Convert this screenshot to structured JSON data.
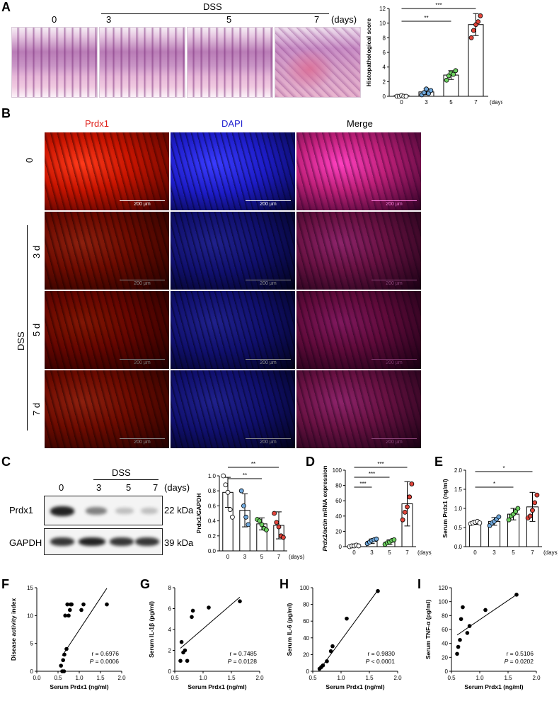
{
  "panels": {
    "A": {
      "letter": "A",
      "top_labels": [
        "0",
        "3",
        "5",
        "7"
      ],
      "dss_label": "DSS",
      "days_label": "(days)",
      "chart": {
        "ylabel": "Histopathological score",
        "categories": [
          "0",
          "3",
          "5",
          "7"
        ],
        "days": "(days)",
        "yticks": [
          "0",
          "2",
          "4",
          "6",
          "8",
          "10",
          "12"
        ],
        "sig": [
          "***",
          "**"
        ]
      }
    },
    "B": {
      "letter": "B",
      "channels": [
        "Prdx1",
        "DAPI",
        "Merge"
      ],
      "rows": [
        "0",
        "3 d",
        "5 d",
        "7 d"
      ],
      "dss_label": "DSS",
      "scalebar": "200 µm"
    },
    "C": {
      "letter": "C",
      "dss_label": "DSS",
      "lanes": [
        "0",
        "3",
        "5",
        "7"
      ],
      "days_label": "(days)",
      "proteins": [
        {
          "name": "Prdx1",
          "kda": "22 kDa"
        },
        {
          "name": "GAPDH",
          "kda": "39 kDa"
        }
      ],
      "chart": {
        "ylabel": "Prdx1/GAPDH",
        "yticks": [
          "0.0",
          "0.2",
          "0.4",
          "0.6",
          "0.8",
          "1.0"
        ],
        "categories": [
          "0",
          "3",
          "5",
          "7"
        ],
        "days": "(days)",
        "sig": [
          "**",
          "**"
        ]
      }
    },
    "D": {
      "letter": "D",
      "ylabel_italic": "Prdx1/actin",
      "ylabel_rest": " mRNA expression",
      "yticks": [
        "0",
        "20",
        "40",
        "60",
        "80",
        "100"
      ],
      "categories": [
        "0",
        "3",
        "5",
        "7"
      ],
      "days": "(days)",
      "sig": [
        "***",
        "***",
        "***"
      ]
    },
    "E": {
      "letter": "E",
      "ylabel": "Serum Prdx1 (ng/ml)",
      "yticks": [
        "0.0",
        "0.5",
        "1.0",
        "1.5",
        "2.0"
      ],
      "categories": [
        "0",
        "3",
        "5",
        "7"
      ],
      "days": "(days)",
      "sig": [
        "*",
        "*"
      ]
    },
    "F": {
      "letter": "F",
      "ylabel": "Disease activity index",
      "xlabel": "Serum Prdx1 (ng/ml)",
      "r": "r = 0.6976",
      "p_label": "P",
      "p": " = 0.0006",
      "xticks": [
        "0.0",
        "0.5",
        "1.0",
        "1.5",
        "2.0"
      ],
      "yticks": [
        "0",
        "5",
        "10",
        "15"
      ]
    },
    "G": {
      "letter": "G",
      "ylabel": "Serum IL-1β (pg/ml)",
      "xlabel": "Serum Prdx1 (ng/ml)",
      "r": "r = 0.7485",
      "p_label": "P",
      "p": " = 0.0128",
      "xticks": [
        "0.5",
        "1.0",
        "1.5",
        "2.0"
      ],
      "yticks": [
        "0",
        "2",
        "4",
        "6",
        "8"
      ]
    },
    "H": {
      "letter": "H",
      "ylabel": "Serum IL-6 (pg/ml)",
      "xlabel": "Serum Prdx1 (ng/ml)",
      "r": "r = 0.9830",
      "p_label": "P",
      "p": " < 0.0001",
      "xticks": [
        "0.5",
        "1.0",
        "1.5",
        "2.0"
      ],
      "yticks": [
        "0",
        "20",
        "40",
        "60",
        "80",
        "100"
      ]
    },
    "I": {
      "letter": "I",
      "ylabel": "Serum TNF-α (pg/ml)",
      "xlabel": "Serum Prdx1 (ng/ml)",
      "r": "r = 0.5106",
      "p_label": "P",
      "p": " = 0.0202",
      "xticks": [
        "0.5",
        "1.0",
        "1.5",
        "2.0"
      ],
      "yticks": [
        "0",
        "20",
        "40",
        "60",
        "80",
        "100",
        "120"
      ]
    }
  },
  "colors": {
    "white_group": "#ffffff",
    "blue_group": "#6fa8dc",
    "green_group": "#6ccf5f",
    "red_group": "#e0443a"
  },
  "chart_data": [
    {
      "type": "bar",
      "id": "A",
      "categories": [
        "0",
        "3",
        "5",
        "7"
      ],
      "values": [
        0.1,
        0.6,
        2.9,
        9.8
      ],
      "err": [
        0.1,
        0.4,
        0.6,
        1.5
      ],
      "points": [
        [
          0,
          0,
          0.1,
          0,
          0
        ],
        [
          0.2,
          0.5,
          1.0,
          0.4,
          0.8
        ],
        [
          2.2,
          2.8,
          3.2,
          3.0,
          3.5
        ],
        [
          8.0,
          9.0,
          9.8,
          10.2,
          11.0
        ]
      ],
      "ylim": [
        0,
        12
      ],
      "ylabel": "Histopathological score"
    },
    {
      "type": "bar",
      "id": "C",
      "categories": [
        "0",
        "3",
        "5",
        "7"
      ],
      "values": [
        0.78,
        0.54,
        0.36,
        0.34
      ],
      "err": [
        0.2,
        0.22,
        0.08,
        0.18
      ],
      "points": [
        [
          1.0,
          0.88,
          0.78,
          0.55,
          0.45
        ],
        [
          0.8,
          0.6,
          0.45,
          0.35
        ],
        [
          0.42,
          0.4,
          0.35,
          0.3,
          0.28
        ],
        [
          0.5,
          0.38,
          0.32,
          0.2,
          0.18
        ]
      ],
      "ylim": [
        0,
        1.0
      ],
      "ylabel": "Prdx1/GAPDH"
    },
    {
      "type": "bar",
      "id": "D",
      "categories": [
        "0",
        "3",
        "5",
        "7"
      ],
      "values": [
        1,
        7,
        6,
        56
      ],
      "err": [
        1,
        3,
        3,
        29
      ],
      "points": [
        [
          0,
          1,
          1,
          2,
          1
        ],
        [
          4,
          6,
          8,
          9,
          10
        ],
        [
          3,
          5,
          6,
          8,
          9
        ],
        [
          35,
          45,
          52,
          65,
          82
        ]
      ],
      "ylim": [
        0,
        100
      ]
    },
    {
      "type": "bar",
      "id": "E",
      "categories": [
        "0",
        "3",
        "5",
        "7"
      ],
      "values": [
        0.63,
        0.66,
        0.85,
        1.04
      ],
      "err": [
        0.05,
        0.1,
        0.15,
        0.38
      ],
      "points": [
        [
          0.6,
          0.62,
          0.64,
          0.66,
          0.62
        ],
        [
          0.55,
          0.62,
          0.66,
          0.72,
          0.78
        ],
        [
          0.7,
          0.8,
          0.85,
          0.92,
          1.0
        ],
        [
          0.75,
          0.8,
          0.95,
          1.15,
          1.35
        ]
      ],
      "ylim": [
        0,
        2.0
      ],
      "ylabel": "Serum Prdx1 (ng/ml)"
    },
    {
      "type": "scatter",
      "id": "F",
      "x": [
        0.57,
        0.6,
        0.62,
        0.64,
        0.65,
        0.67,
        0.7,
        0.72,
        0.75,
        0.78,
        0.8,
        0.82,
        1.05,
        1.1,
        1.65
      ],
      "y": [
        1,
        0,
        2,
        0,
        3,
        10,
        4,
        12,
        10,
        11,
        12,
        12,
        11,
        12,
        12
      ],
      "fit": [
        [
          0.6,
          2.8
        ],
        [
          1.65,
          14.9
        ]
      ],
      "xlim": [
        0,
        2
      ],
      "ylim": [
        0,
        15
      ]
    },
    {
      "type": "scatter",
      "id": "G",
      "x": [
        0.6,
        0.62,
        0.65,
        0.68,
        0.72,
        0.8,
        0.82,
        1.1,
        1.65
      ],
      "y": [
        1.0,
        2.8,
        1.8,
        2.0,
        1.0,
        5.2,
        5.8,
        6.1,
        6.7
      ],
      "fit": [
        [
          0.6,
          2.2
        ],
        [
          1.65,
          7.1
        ]
      ],
      "xlim": [
        0.5,
        2
      ],
      "ylim": [
        0,
        8
      ]
    },
    {
      "type": "scatter",
      "id": "H",
      "x": [
        0.62,
        0.65,
        0.68,
        0.75,
        0.82,
        0.85,
        1.1,
        1.65
      ],
      "y": [
        3,
        5,
        7,
        12,
        24,
        30,
        63,
        96
      ],
      "fit": [
        [
          0.6,
          0
        ],
        [
          1.65,
          97
        ]
      ],
      "xlim": [
        0.5,
        2
      ],
      "ylim": [
        0,
        100
      ]
    },
    {
      "type": "scatter",
      "id": "I",
      "x": [
        0.6,
        0.62,
        0.65,
        0.67,
        0.7,
        0.78,
        0.82,
        1.1,
        1.65
      ],
      "y": [
        25,
        35,
        45,
        75,
        92,
        55,
        65,
        88,
        110
      ],
      "fit": [
        [
          0.6,
          52
        ],
        [
          1.65,
          110
        ]
      ],
      "xlim": [
        0.5,
        2
      ],
      "ylim": [
        0,
        120
      ]
    }
  ]
}
